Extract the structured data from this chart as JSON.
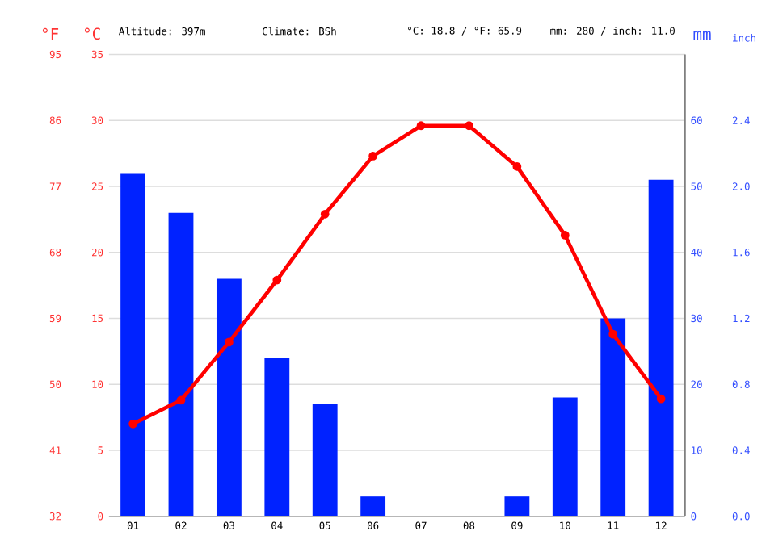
{
  "chart_data": {
    "type": "bar",
    "categories": [
      "01",
      "02",
      "03",
      "04",
      "05",
      "06",
      "07",
      "08",
      "09",
      "10",
      "11",
      "12"
    ],
    "ylabel": "°C",
    "y2label": "mm",
    "y3label": "°F",
    "ylim": [
      0,
      35
    ],
    "yticks": [
      0,
      5,
      10,
      15,
      20,
      25,
      30,
      35
    ],
    "y2lim": [
      0,
      70
    ],
    "y2ticks": [
      0,
      10,
      20,
      30,
      40,
      50,
      60
    ],
    "y3lim": [
      32,
      95
    ],
    "y3ticks": [
      32,
      41,
      50,
      59,
      68,
      77,
      86,
      95
    ],
    "grid": "y",
    "annotations": [
      "Altitude: 397m",
      "Climate: BSh",
      "°C: 18.8 / °F: 65.9",
      "mm: 280 / inch: 11.0",
      "inch",
      "0.0",
      "0.4",
      "0.8",
      "1.2",
      "1.6",
      "2.0",
      "2.4"
    ],
    "series": [
      {
        "axis": "y2",
        "color": "#0022ff",
        "values": [
          52,
          46,
          36,
          24,
          17,
          3,
          0,
          0,
          3,
          18,
          30,
          51
        ]
      },
      {
        "type": "line",
        "axis": "y",
        "color": "#ff0000",
        "marker": "circle",
        "values": [
          7.0,
          8.8,
          13.2,
          17.9,
          22.9,
          27.3,
          29.6,
          29.6,
          26.5,
          21.3,
          13.8,
          8.9
        ]
      }
    ]
  }
}
